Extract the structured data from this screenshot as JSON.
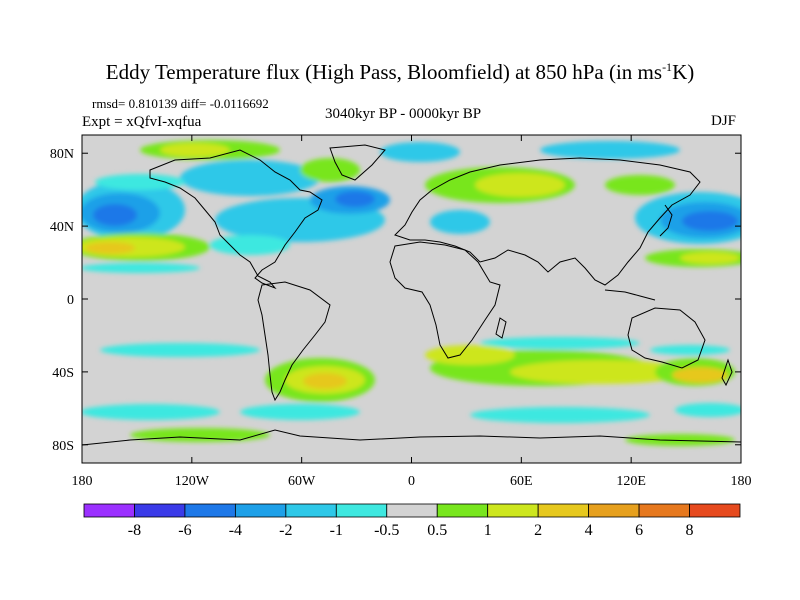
{
  "title": "Eddy Temperature flux (High Pass, Bloomfield) at 850 hPa (in ms",
  "title_unit_sup": "-1",
  "title_end": "K)",
  "stats": "rmsd= 0.810139 diff= -0.0116692",
  "experiment": "Expt = xQfvI-xqfua",
  "period": "3040kyr BP - 0000kyr BP",
  "season": "DJF",
  "map": {
    "projection": "cylindrical equidistant",
    "lon_range": [
      -180,
      180
    ],
    "lat_range": [
      -90,
      90
    ],
    "lat_ticks": [
      {
        "value": 80,
        "label": "80N"
      },
      {
        "value": 40,
        "label": "40N"
      },
      {
        "value": 0,
        "label": "0"
      },
      {
        "value": -40,
        "label": "40S"
      },
      {
        "value": -80,
        "label": "80S"
      }
    ],
    "lon_ticks": [
      {
        "value": -180,
        "label": "180"
      },
      {
        "value": -120,
        "label": "120W"
      },
      {
        "value": -60,
        "label": "60W"
      },
      {
        "value": 0,
        "label": "0"
      },
      {
        "value": 60,
        "label": "60E"
      },
      {
        "value": 120,
        "label": "120E"
      },
      {
        "value": 180,
        "label": "180"
      }
    ],
    "background_color": "#d3d3d3",
    "coastline_color": "#000000"
  },
  "colorbar": {
    "colors": [
      "#9b30ff",
      "#3a3ae8",
      "#1e78e8",
      "#1ea0e8",
      "#2ec8e8",
      "#3ee8e0",
      "#d3d3d3",
      "#78e61e",
      "#cde61e",
      "#e6c81e",
      "#e6a01e",
      "#e6781e",
      "#e64a1e"
    ],
    "levels": [
      "-8",
      "-6",
      "-4",
      "-2",
      "-1",
      "-0.5",
      "0.5",
      "1",
      "2",
      "4",
      "6",
      "8"
    ]
  }
}
